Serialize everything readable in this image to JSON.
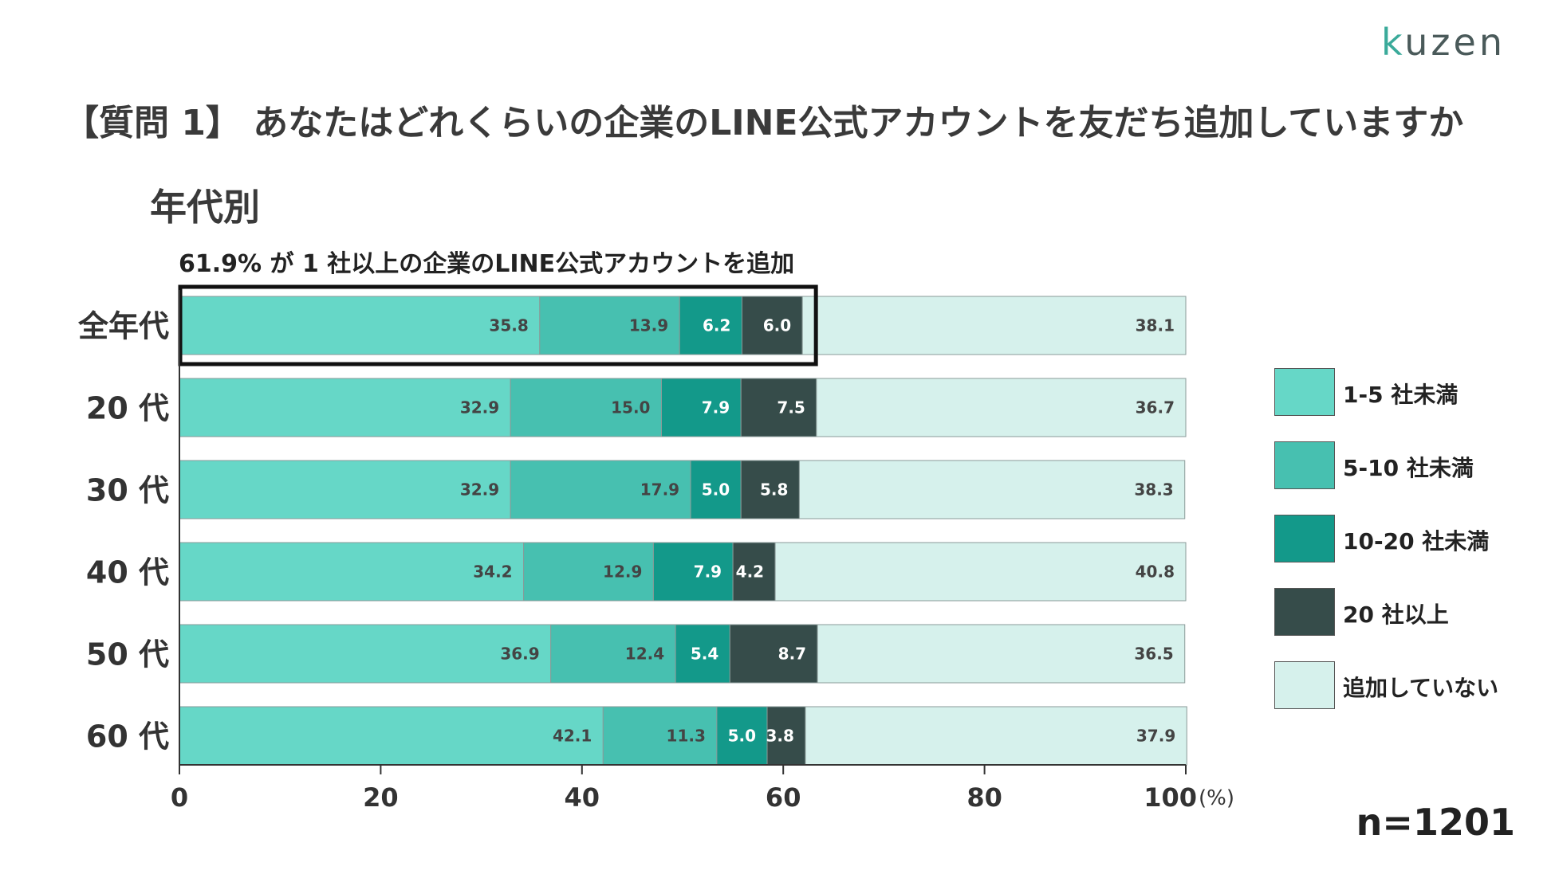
{
  "logo": {
    "text": "kuzen"
  },
  "question": "【質問 1】 あなたはどれくらいの企業のLINE公式アカウントを友だち追加していますか",
  "subtitle": "年代別",
  "highlight_note": "61.9% が 1 社以上の企業のLINE公式アカウントを追加",
  "sample_size": "n=1201",
  "colors": {
    "c1": "#66d7c7",
    "c2": "#47c0b0",
    "c3": "#13998a",
    "c4": "#364c4a",
    "c5": "#d6f1ec"
  },
  "chart_data": {
    "type": "bar",
    "orientation": "horizontal",
    "stacked": true,
    "categories": [
      "全年代",
      "20 代",
      "30 代",
      "40 代",
      "50 代",
      "60 代"
    ],
    "series": [
      {
        "name": "1-5 社未満",
        "values": [
          35.8,
          32.9,
          32.9,
          34.2,
          36.9,
          42.1
        ]
      },
      {
        "name": "5-10 社未満",
        "values": [
          13.9,
          15.0,
          17.9,
          12.9,
          12.4,
          11.3
        ]
      },
      {
        "name": "10-20 社未満",
        "values": [
          6.2,
          7.9,
          5.0,
          7.9,
          5.4,
          5.0
        ]
      },
      {
        "name": " 20 社以上",
        "values": [
          6.0,
          7.5,
          5.8,
          4.2,
          8.7,
          3.8
        ]
      },
      {
        "name": "追加していない",
        "values": [
          38.1,
          36.7,
          38.3,
          40.8,
          36.5,
          37.9
        ]
      }
    ],
    "x_ticks": [
      "0",
      "20",
      "40",
      "60",
      "80",
      "100"
    ],
    "x_unit": "(%)",
    "xlim": [
      0,
      100
    ],
    "legend_position": "right",
    "highlight": {
      "category": "全年代",
      "covers_series": 4
    }
  }
}
